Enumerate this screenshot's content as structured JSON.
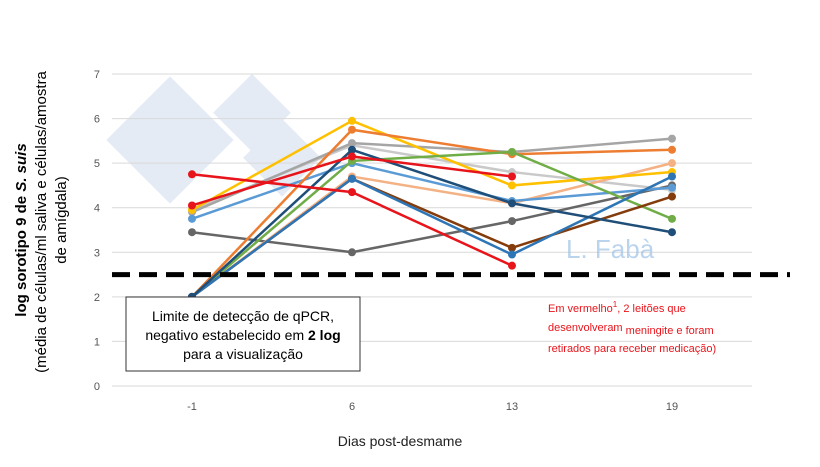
{
  "chart_data": {
    "type": "line",
    "y_label": [
      "log sorotipo 9 de ",
      "S. suis"
    ],
    "y_label_sub": [
      "(média de células/ml saliva e células/amostra",
      "de amígdala)"
    ],
    "x_label": "Dias post-desmame",
    "categories": [
      "-1",
      "6",
      "13",
      "19"
    ],
    "ylim": [
      0,
      7
    ],
    "yticks": [
      0,
      1,
      2,
      3,
      4,
      5,
      6,
      7
    ],
    "grid": true,
    "threshold": 2.5,
    "watermark": "L. Fabà",
    "box_note": {
      "line1": "Limite de detecção de qPCR,",
      "line2": "negativo estabelecido em ",
      "line2_bold": "2 log",
      "line3": "para a visualização"
    },
    "red_note": {
      "a": "Em vermelho",
      "sup": "1",
      "b": ", 2 leitões que",
      "c": "desenvolveram",
      "d": " meningite e foram",
      "e": "retirados para receber medicação)"
    },
    "series": [
      {
        "color": "#666666",
        "values": [
          3.45,
          3.0,
          3.7,
          4.5
        ]
      },
      {
        "color": "#c9c9c9",
        "values": [
          3.95,
          5.4,
          4.8,
          4.4
        ]
      },
      {
        "color": "#a5a5a5",
        "values": [
          3.9,
          5.45,
          5.25,
          5.55
        ]
      },
      {
        "color": "#f4b183",
        "values": [
          2.0,
          4.7,
          4.1,
          5.0
        ]
      },
      {
        "color": "#5b9bd5",
        "values": [
          3.75,
          5.0,
          4.15,
          4.45
        ]
      },
      {
        "color": "#ffc000",
        "values": [
          3.95,
          5.95,
          4.5,
          4.8
        ]
      },
      {
        "color": "#ed7d31",
        "values": [
          2.0,
          5.75,
          5.2,
          5.3
        ]
      },
      {
        "color": "#70ad47",
        "values": [
          2.0,
          5.05,
          5.25,
          3.75
        ]
      },
      {
        "color": "#843c0c",
        "values": [
          2.0,
          4.65,
          3.1,
          4.25
        ]
      },
      {
        "color": "#2e75b6",
        "values": [
          2.0,
          4.65,
          2.95,
          4.7
        ]
      },
      {
        "color": "#1f4e79",
        "values": [
          2.0,
          5.3,
          4.1,
          3.45
        ]
      },
      {
        "color": "#e8141b",
        "values": [
          4.05,
          5.15,
          4.7,
          null
        ]
      },
      {
        "color": "#e8141b",
        "values": [
          4.75,
          4.35,
          2.7,
          null
        ]
      }
    ]
  }
}
